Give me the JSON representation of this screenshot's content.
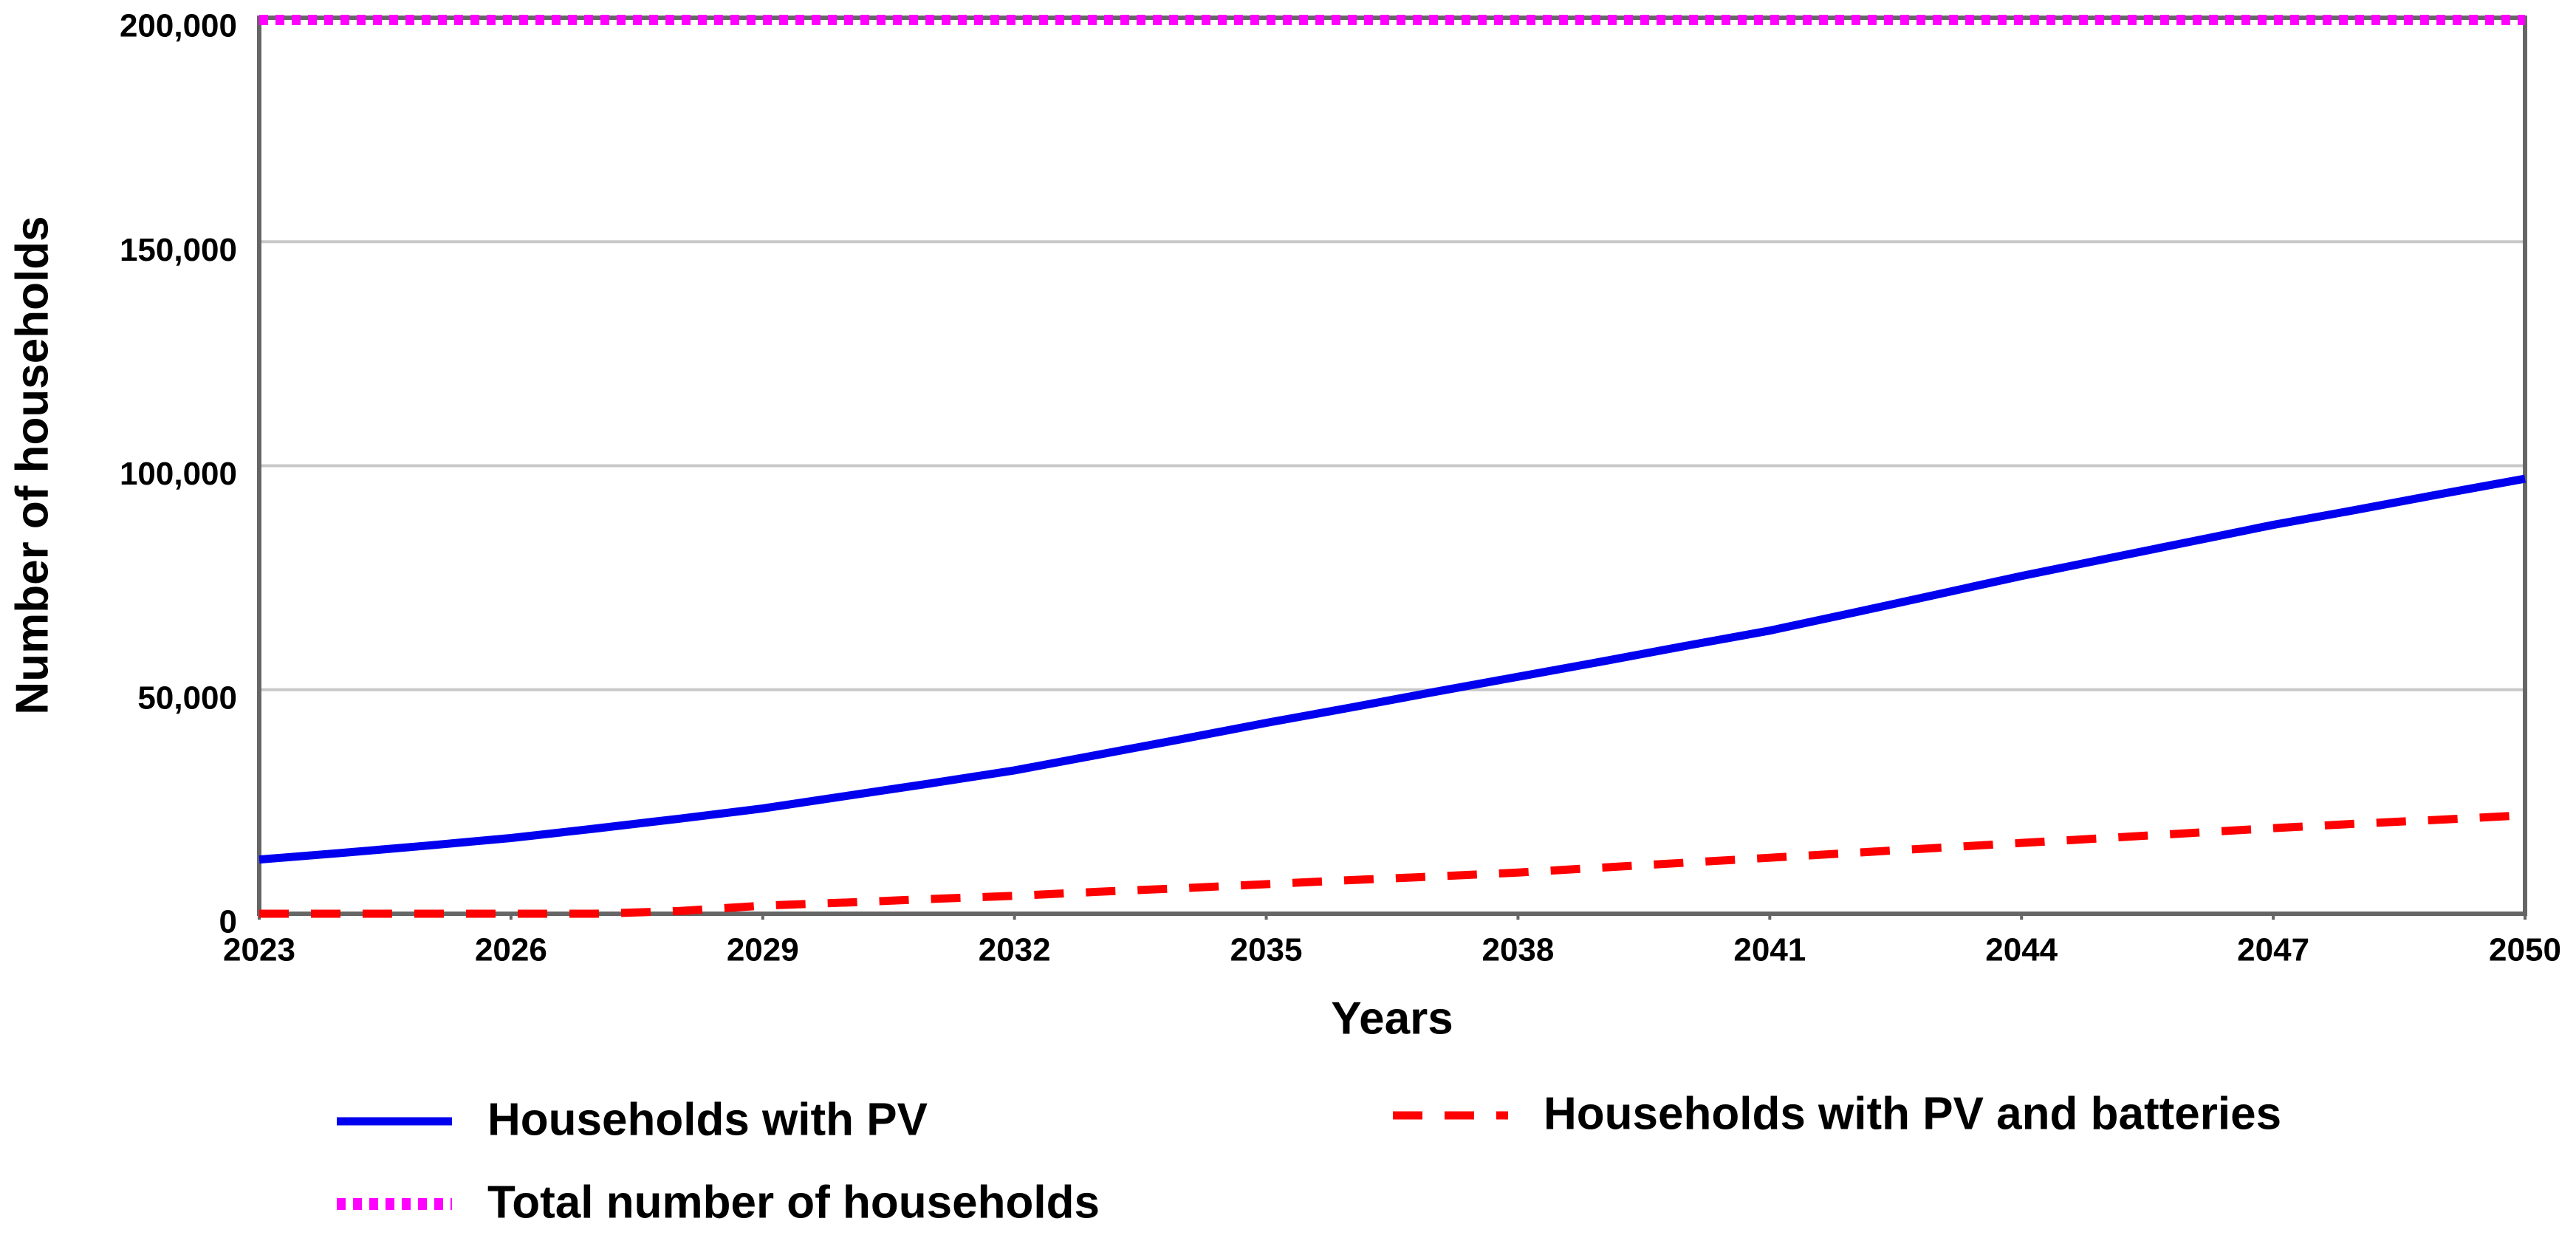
{
  "chart_data": {
    "type": "line",
    "x_label": "Years",
    "y_label": "Number of households",
    "x": [
      2023,
      2024,
      2025,
      2026,
      2027,
      2028,
      2029,
      2030,
      2031,
      2032,
      2033,
      2034,
      2035,
      2036,
      2037,
      2038,
      2039,
      2040,
      2041,
      2042,
      2043,
      2044,
      2045,
      2046,
      2047,
      2048,
      2049,
      2050
    ],
    "xlim": [
      2023,
      2050
    ],
    "xticks": [
      2023,
      2026,
      2029,
      2032,
      2035,
      2038,
      2041,
      2044,
      2047,
      2050
    ],
    "ylim": [
      0,
      200000
    ],
    "yticks": [
      0,
      {
        "value": 50000,
        "label": "50,000"
      },
      {
        "value": 100000,
        "label": "100,000"
      },
      {
        "value": 150000,
        "label": "150,000"
      },
      {
        "value": 200000,
        "label": "200,000"
      }
    ],
    "grid": true,
    "series": [
      {
        "name": "Households with PV",
        "color": "#0000ee",
        "style": "solid",
        "values": [
          12100,
          13600,
          15200,
          16900,
          19000,
          21200,
          23500,
          26300,
          29100,
          32000,
          35500,
          39000,
          42600,
          46000,
          49500,
          52900,
          56300,
          59800,
          63200,
          67200,
          71300,
          75400,
          79200,
          83000,
          86800,
          90200,
          93700,
          97100
        ]
      },
      {
        "name": "Households with PV and batteries",
        "color": "#ff0000",
        "style": "dashed",
        "values": [
          0,
          0,
          0,
          0,
          0,
          600,
          1800,
          2500,
          3300,
          4000,
          4900,
          5700,
          6600,
          7500,
          8300,
          9200,
          10300,
          11400,
          12500,
          13600,
          14700,
          15800,
          16900,
          18000,
          19100,
          20100,
          21000,
          22000
        ]
      },
      {
        "name": "Total number of households",
        "color": "#ff00ff",
        "style": "dotted",
        "values": [
          199500,
          199500,
          199500,
          199500,
          199500,
          199500,
          199500,
          199500,
          199500,
          199500,
          199500,
          199500,
          199500,
          199500,
          199500,
          199500,
          199500,
          199500,
          199500,
          199500,
          199500,
          199500,
          199500,
          199500,
          199500,
          199500,
          199500,
          199500
        ]
      }
    ]
  }
}
